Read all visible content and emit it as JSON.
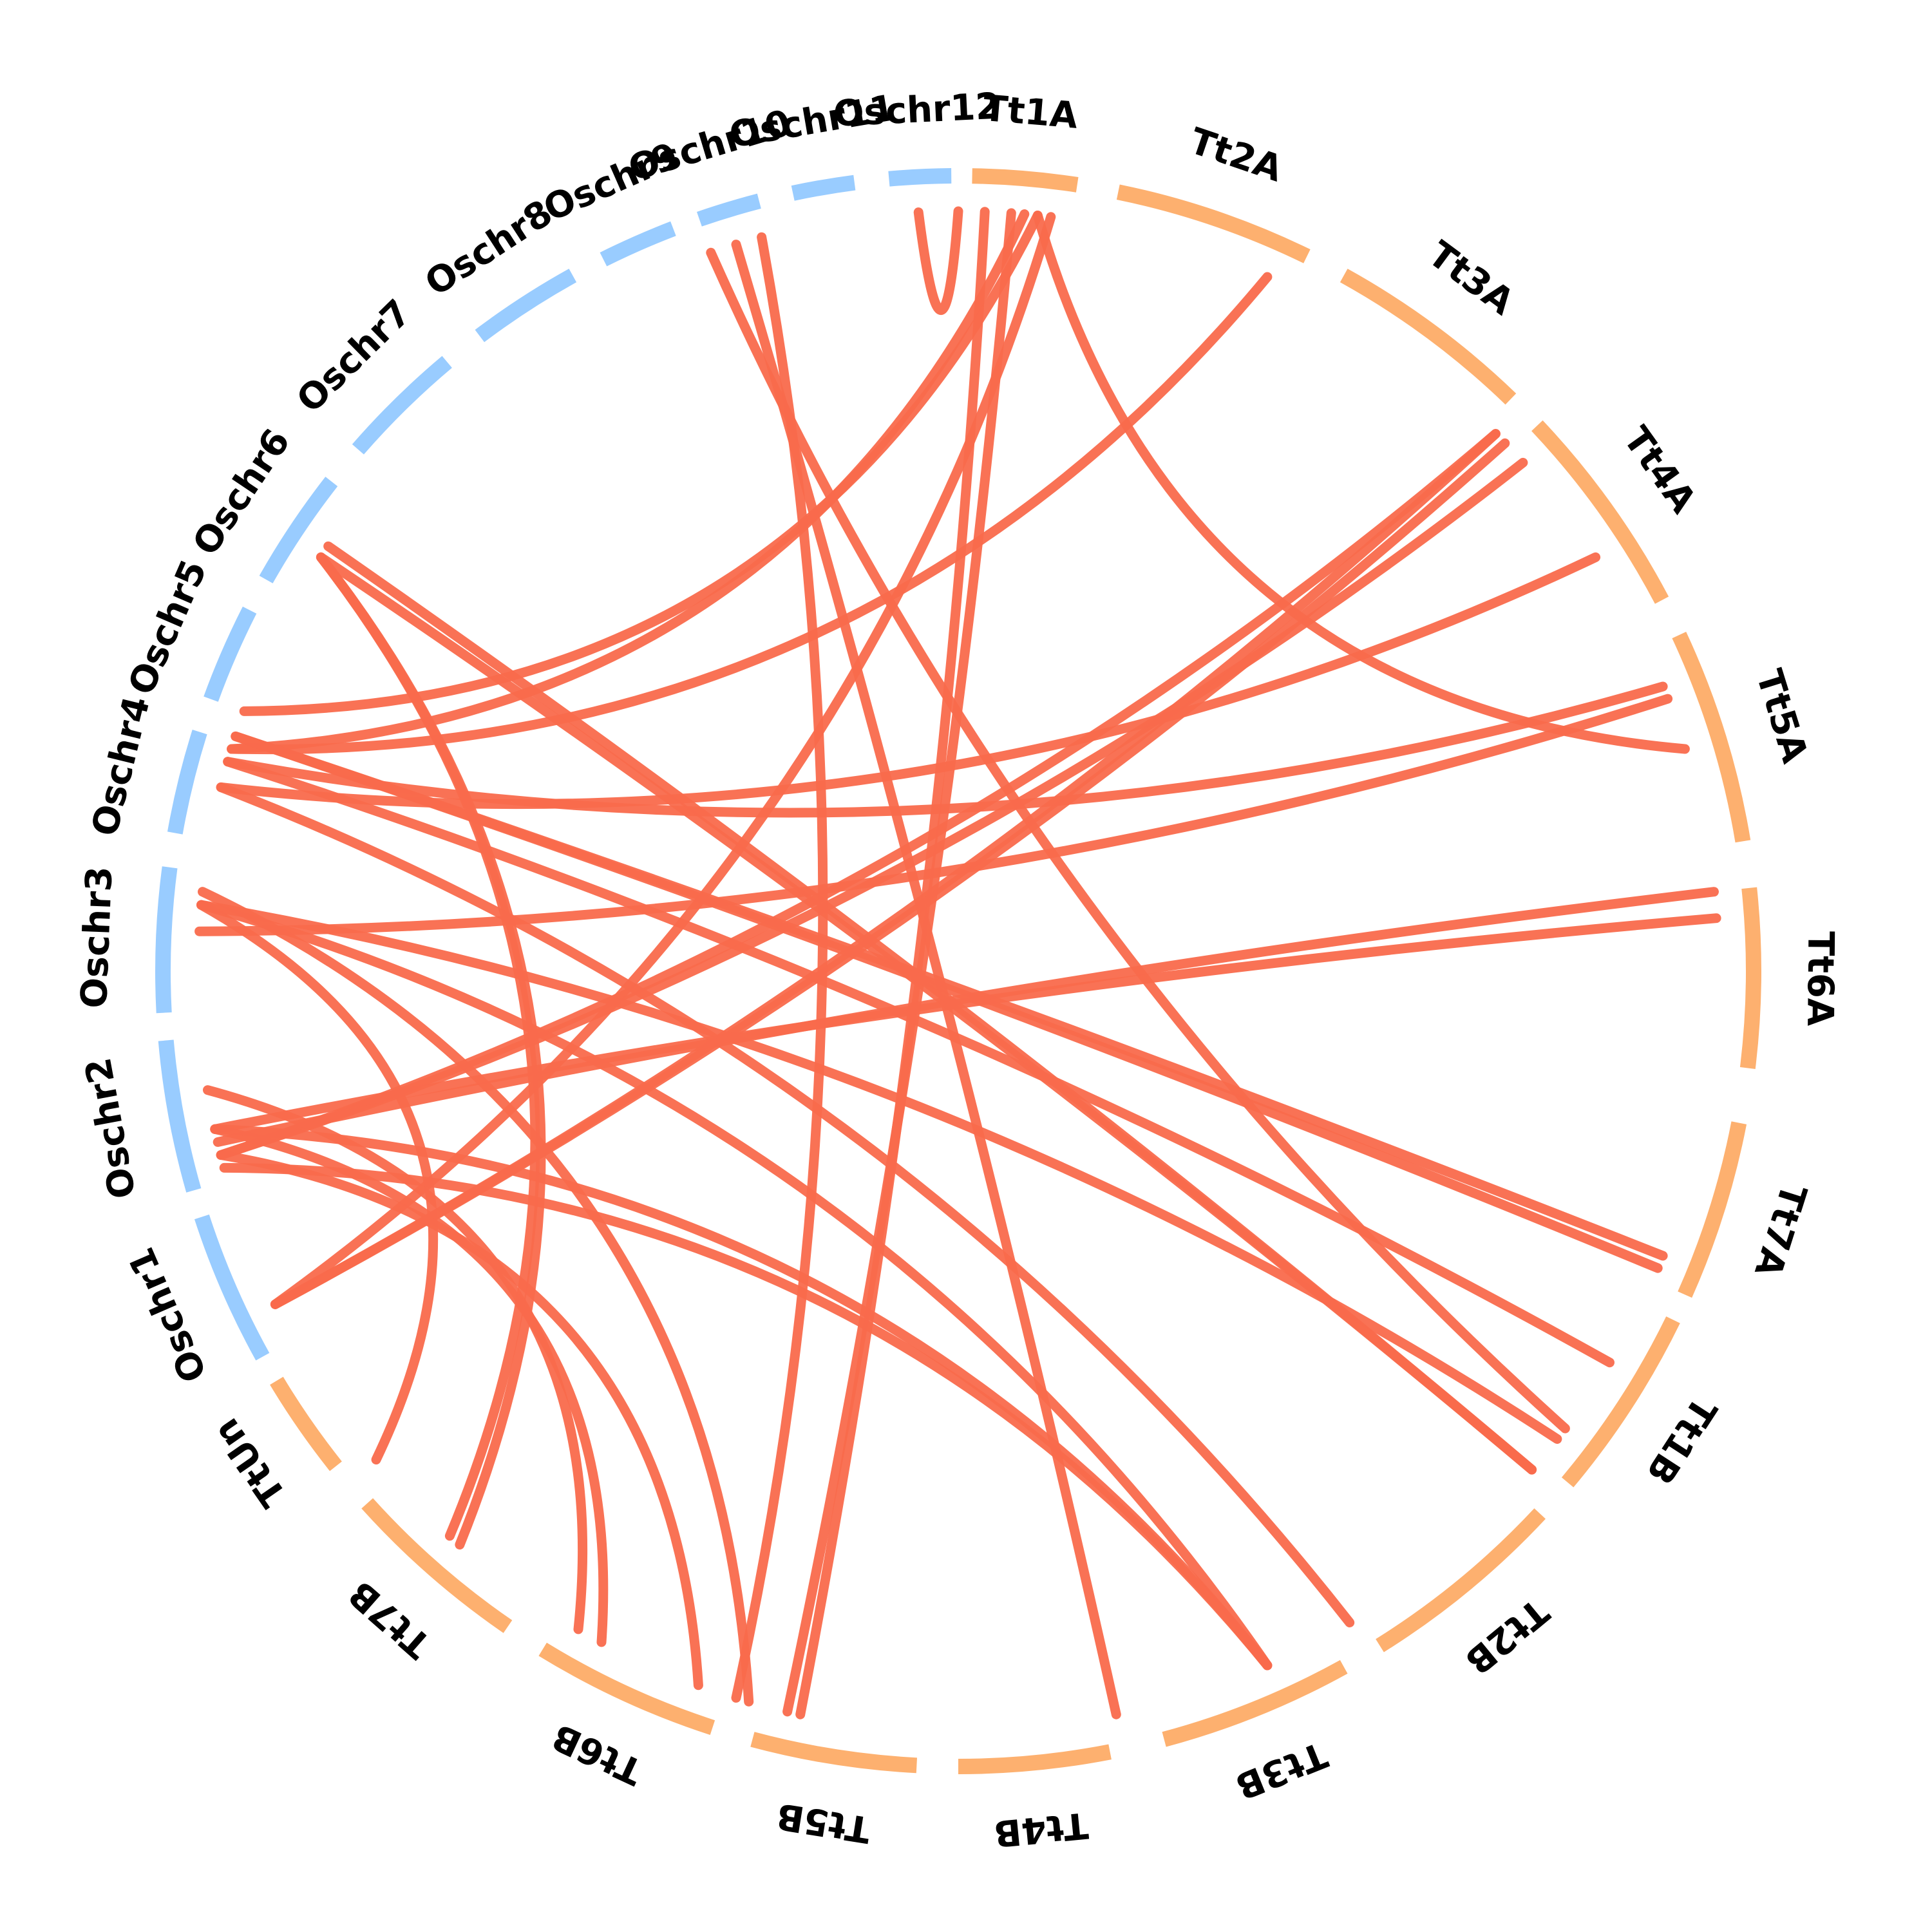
{
  "colors": {
    "oryza_arc": "#99CCFF",
    "triticum_arc": "#FDB06F",
    "link": "#F96A4C"
  },
  "chromosomes": [
    {
      "label": "Tt1A",
      "group": "triticum"
    },
    {
      "label": "Tt2A",
      "group": "triticum"
    },
    {
      "label": "Tt3A",
      "group": "triticum"
    },
    {
      "label": "Tt4A",
      "group": "triticum"
    },
    {
      "label": "Tt5A",
      "group": "triticum"
    },
    {
      "label": "Tt6A",
      "group": "triticum"
    },
    {
      "label": "Tt7A",
      "group": "triticum"
    },
    {
      "label": "Tt1B",
      "group": "triticum"
    },
    {
      "label": "Tt2B",
      "group": "triticum"
    },
    {
      "label": "Tt3B",
      "group": "triticum"
    },
    {
      "label": "Tt4B",
      "group": "triticum"
    },
    {
      "label": "Tt5B",
      "group": "triticum"
    },
    {
      "label": "Tt6B",
      "group": "triticum"
    },
    {
      "label": "Tt7B",
      "group": "triticum"
    },
    {
      "label": "TtUn",
      "group": "triticum"
    },
    {
      "label": "Oschr1",
      "group": "oryza"
    },
    {
      "label": "Oschr2",
      "group": "oryza"
    },
    {
      "label": "Oschr3",
      "group": "oryza"
    },
    {
      "label": "Oschr4",
      "group": "oryza"
    },
    {
      "label": "Oschr5",
      "group": "oryza"
    },
    {
      "label": "Oschr6",
      "group": "oryza"
    },
    {
      "label": "Oschr7",
      "group": "oryza"
    },
    {
      "label": "Oschr8",
      "group": "oryza"
    },
    {
      "label": "Oschr9",
      "group": "oryza"
    },
    {
      "label": "Oschr10",
      "group": "oryza"
    },
    {
      "label": "Oschr11",
      "group": "oryza"
    },
    {
      "label": "Oschr12",
      "group": "oryza"
    }
  ],
  "links": [
    {
      "from": "Oschr12",
      "to": "Tt5B"
    },
    {
      "from": "Tt1A",
      "to": "Tt5B"
    },
    {
      "from": "Tt1A",
      "to": "Tt5B"
    },
    {
      "from": "Tt1A",
      "to": "Tt5A"
    },
    {
      "from": "Oschr12",
      "to": "Tt1A"
    },
    {
      "from": "Oschr10",
      "to": "Tt1B"
    },
    {
      "from": "Oschr10",
      "to": "Tt4B"
    },
    {
      "from": "Tt1A",
      "to": "Oschr5"
    },
    {
      "from": "Tt1A",
      "to": "Oschr5"
    },
    {
      "from": "Tt1A",
      "to": "Oschr1"
    },
    {
      "from": "Tt2A",
      "to": "Oschr5"
    },
    {
      "from": "Tt3A",
      "to": "Oschr2"
    },
    {
      "from": "Tt3A",
      "to": "Oschr1"
    },
    {
      "from": "Tt3A",
      "to": "Oschr1"
    },
    {
      "from": "Tt3A",
      "to": "Oschr2"
    },
    {
      "from": "Tt4A",
      "to": "Oschr4"
    },
    {
      "from": "Tt4A",
      "to": "Oschr4"
    },
    {
      "from": "Tt5A",
      "to": "Oschr3"
    },
    {
      "from": "Tt6A",
      "to": "Oschr2"
    },
    {
      "from": "Tt6A",
      "to": "Oschr2"
    },
    {
      "from": "Oschr6",
      "to": "Tt7B"
    },
    {
      "from": "Oschr6",
      "to": "Tt7B"
    },
    {
      "from": "Oschr6",
      "to": "Tt1B"
    },
    {
      "from": "Oschr6",
      "to": "Tt1B"
    },
    {
      "from": "Oschr5",
      "to": "Tt7A"
    },
    {
      "from": "Oschr5",
      "to": "Tt7A"
    },
    {
      "from": "Oschr5",
      "to": "Tt2B"
    },
    {
      "from": "Oschr4",
      "to": "Tt1B"
    },
    {
      "from": "Oschr4",
      "to": "Tt1B"
    },
    {
      "from": "Oschr4",
      "to": "Tt3B"
    },
    {
      "from": "Oschr3",
      "to": "TtUn"
    },
    {
      "from": "Oschr3",
      "to": "Tt5B"
    },
    {
      "from": "Oschr2",
      "to": "Tt6B"
    },
    {
      "from": "Oschr2",
      "to": "Tt6B"
    },
    {
      "from": "Oschr1",
      "to": "Tt6B"
    },
    {
      "from": "Oschr1",
      "to": "Tt3B"
    },
    {
      "from": "Oschr1",
      "to": "Tt3B"
    }
  ]
}
